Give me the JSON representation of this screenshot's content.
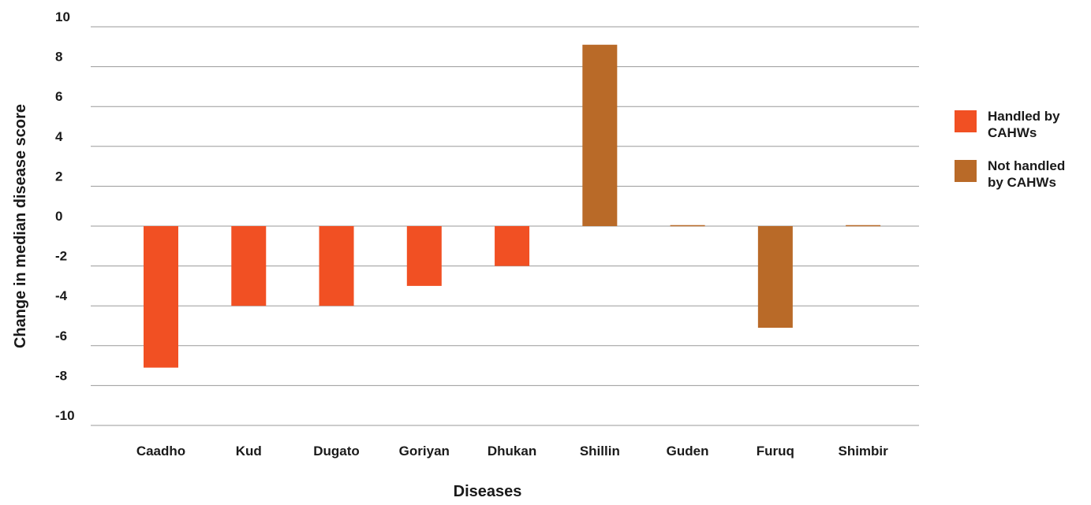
{
  "chart_data": {
    "type": "bar",
    "categories": [
      "Caadho",
      "Kud",
      "Dugato",
      "Goriyan",
      "Dhukan",
      "Shillin",
      "Guden",
      "Furuq",
      "Shimbir"
    ],
    "values": [
      -7.1,
      -4,
      -4,
      -3,
      -2,
      9.1,
      0.05,
      -5.1,
      0.05
    ],
    "groups": [
      "Handled by CAHWs",
      "Handled by CAHWs",
      "Handled by CAHWs",
      "Handled by CAHWs",
      "Handled by CAHWs",
      "Not handled by CAHWs",
      "Not handled by CAHWs",
      "Not handled by CAHWs",
      "Not handled by CAHWs"
    ],
    "series": [
      {
        "name": "Handled by CAHWs",
        "color": "#f15023"
      },
      {
        "name": "Not handled by CAHWs",
        "color": "#b96a28"
      }
    ],
    "xlabel": "Diseases",
    "ylabel": "Change in median disease score",
    "ylim": [
      -10,
      10
    ],
    "yticks": [
      10,
      8,
      6,
      4,
      2,
      0,
      -2,
      -4,
      -6,
      -8,
      -10
    ],
    "grid": true,
    "legend_position": "right",
    "legend": {
      "items": [
        {
          "line1": "Handled by",
          "line2": "CAHWs",
          "color": "#f15023"
        },
        {
          "line1": "Not handled",
          "line2": "by CAHWs",
          "color": "#b96a28"
        }
      ]
    }
  }
}
